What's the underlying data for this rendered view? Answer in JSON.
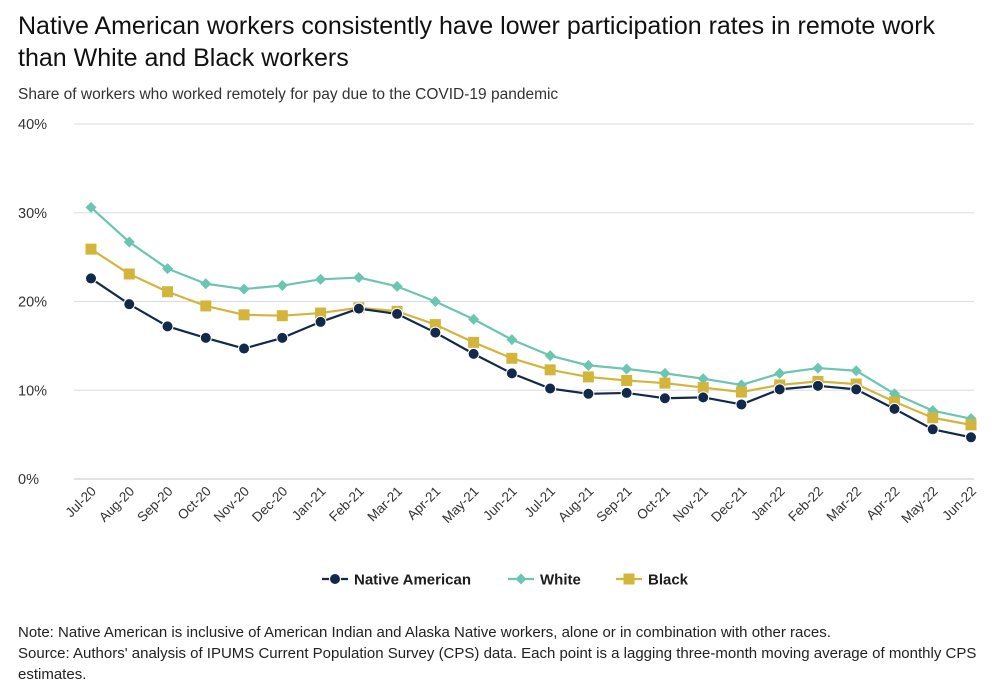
{
  "chart_data": {
    "type": "line",
    "title": "Native American workers consistently have lower participation rates in remote work than White and Black workers",
    "subtitle": "Share of workers who worked remotely for pay due to the COVID-19 pandemic",
    "x": [
      "Jul-20",
      "Aug-20",
      "Sep-20",
      "Oct-20",
      "Nov-20",
      "Dec-20",
      "Jan-21",
      "Feb-21",
      "Mar-21",
      "Apr-21",
      "May-21",
      "Jun-21",
      "Jul-21",
      "Aug-21",
      "Sep-21",
      "Oct-21",
      "Nov-21",
      "Dec-21",
      "Jan-22",
      "Feb-22",
      "Mar-22",
      "Apr-22",
      "May-22",
      "Jun-22"
    ],
    "y_ticks": [
      "0%",
      "10%",
      "20%",
      "30%",
      "40%"
    ],
    "ylim": [
      0,
      40
    ],
    "y_unit": "%",
    "grid": true,
    "legend_position": "bottom-center",
    "series": [
      {
        "name": "Native American",
        "color": "#13294b",
        "marker": "circle",
        "values": [
          22.6,
          19.7,
          17.2,
          15.9,
          14.7,
          15.9,
          17.7,
          19.2,
          18.6,
          16.5,
          14.1,
          11.9,
          10.2,
          9.6,
          9.7,
          9.1,
          9.2,
          8.4,
          10.1,
          10.5,
          10.1,
          7.9,
          5.6,
          4.7
        ]
      },
      {
        "name": "White",
        "color": "#6cc5b0",
        "marker": "diamond",
        "values": [
          30.6,
          26.7,
          23.7,
          22.0,
          21.4,
          21.8,
          22.5,
          22.7,
          21.7,
          20.0,
          18.0,
          15.7,
          13.9,
          12.8,
          12.4,
          11.9,
          11.3,
          10.6,
          11.9,
          12.5,
          12.2,
          9.6,
          7.7,
          6.8
        ]
      },
      {
        "name": "Black",
        "color": "#d4b53c",
        "marker": "square",
        "values": [
          25.9,
          23.1,
          21.1,
          19.5,
          18.5,
          18.4,
          18.7,
          19.3,
          18.9,
          17.4,
          15.4,
          13.6,
          12.3,
          11.5,
          11.1,
          10.8,
          10.3,
          9.8,
          10.6,
          11.0,
          10.7,
          8.7,
          6.9,
          6.1
        ]
      }
    ]
  },
  "notes": {
    "line1": "Note: Native American is inclusive of American Indian and Alaska Native workers, alone or in combination with other races.",
    "line2": "Source: Authors' analysis of IPUMS Current Population Survey (CPS) data. Each point is a lagging three-month moving average of monthly CPS estimates."
  }
}
